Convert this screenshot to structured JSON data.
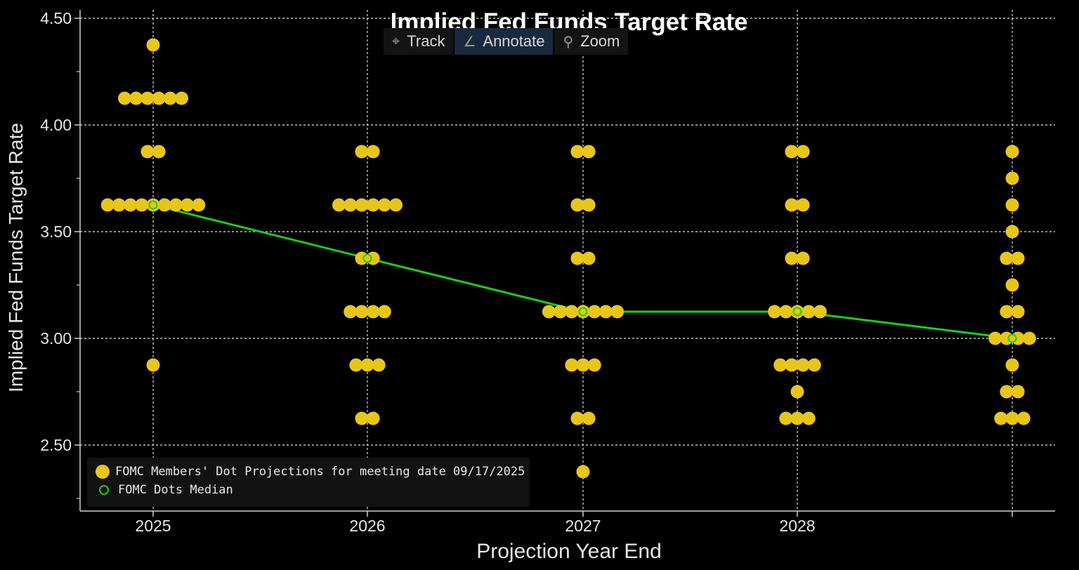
{
  "chart_data": {
    "type": "scatter",
    "title": "Implied Fed Funds Target Rate",
    "xlabel": "Projection Year End",
    "ylabel": "Implied Fed Funds Target Rate",
    "categories": [
      "2025",
      "2026",
      "2027",
      "2028",
      ""
    ],
    "yticks": [
      "4.50",
      "4.00",
      "3.50",
      "3.00",
      "2.50"
    ],
    "ylim": [
      2.19,
      4.55
    ],
    "grid": true,
    "legend_position": "bottom-left",
    "series": [
      {
        "name": "FOMC Members' Dot Projections for meeting date 09/17/2025",
        "marker": "filled-circle",
        "color": "#e8c619",
        "points": [
          {
            "x": "2025",
            "y": 4.375,
            "count": 1
          },
          {
            "x": "2025",
            "y": 4.125,
            "count": 6
          },
          {
            "x": "2025",
            "y": 3.875,
            "count": 2
          },
          {
            "x": "2025",
            "y": 3.625,
            "count": 9
          },
          {
            "x": "2025",
            "y": 2.875,
            "count": 1
          },
          {
            "x": "2026",
            "y": 3.875,
            "count": 2
          },
          {
            "x": "2026",
            "y": 3.625,
            "count": 6
          },
          {
            "x": "2026",
            "y": 3.375,
            "count": 2
          },
          {
            "x": "2026",
            "y": 3.125,
            "count": 4
          },
          {
            "x": "2026",
            "y": 2.875,
            "count": 3
          },
          {
            "x": "2026",
            "y": 2.625,
            "count": 2
          },
          {
            "x": "2027",
            "y": 3.875,
            "count": 2
          },
          {
            "x": "2027",
            "y": 3.625,
            "count": 2
          },
          {
            "x": "2027",
            "y": 3.375,
            "count": 2
          },
          {
            "x": "2027",
            "y": 3.125,
            "count": 7
          },
          {
            "x": "2027",
            "y": 2.875,
            "count": 3
          },
          {
            "x": "2027",
            "y": 2.625,
            "count": 2
          },
          {
            "x": "2027",
            "y": 2.375,
            "count": 1
          },
          {
            "x": "2028",
            "y": 3.875,
            "count": 2
          },
          {
            "x": "2028",
            "y": 3.625,
            "count": 2
          },
          {
            "x": "2028",
            "y": 3.375,
            "count": 2
          },
          {
            "x": "2028",
            "y": 3.125,
            "count": 5
          },
          {
            "x": "2028",
            "y": 2.875,
            "count": 4
          },
          {
            "x": "2028",
            "y": 2.75,
            "count": 1
          },
          {
            "x": "2028",
            "y": 2.625,
            "count": 3
          },
          {
            "x": "",
            "y": 3.875,
            "count": 1
          },
          {
            "x": "",
            "y": 3.75,
            "count": 1
          },
          {
            "x": "",
            "y": 3.625,
            "count": 1
          },
          {
            "x": "",
            "y": 3.5,
            "count": 1
          },
          {
            "x": "",
            "y": 3.375,
            "count": 2
          },
          {
            "x": "",
            "y": 3.25,
            "count": 1
          },
          {
            "x": "",
            "y": 3.125,
            "count": 2
          },
          {
            "x": "",
            "y": 3.0,
            "count": 4
          },
          {
            "x": "",
            "y": 2.875,
            "count": 1
          },
          {
            "x": "",
            "y": 2.75,
            "count": 2
          },
          {
            "x": "",
            "y": 2.625,
            "count": 3
          }
        ]
      },
      {
        "name": "FOMC Dots Median",
        "marker": "hollow-circle",
        "color": "#18d018",
        "line": true,
        "x": [
          "2025",
          "2026",
          "2027",
          "2028",
          ""
        ],
        "y": [
          3.625,
          3.375,
          3.125,
          3.125,
          3.0
        ]
      }
    ]
  },
  "toolbar": {
    "items": [
      {
        "label": "Track",
        "icon": "crosshair-icon"
      },
      {
        "label": "Annotate",
        "icon": "pencil-icon"
      },
      {
        "label": "Zoom",
        "icon": "magnifier-icon"
      }
    ]
  },
  "colors": {
    "background": "#000000",
    "dot": "#e8c619",
    "median": "#18d018",
    "grid": "#bfbfbf",
    "axis": "#d0d0d0",
    "toolbar_active": "#1a2a3e"
  }
}
